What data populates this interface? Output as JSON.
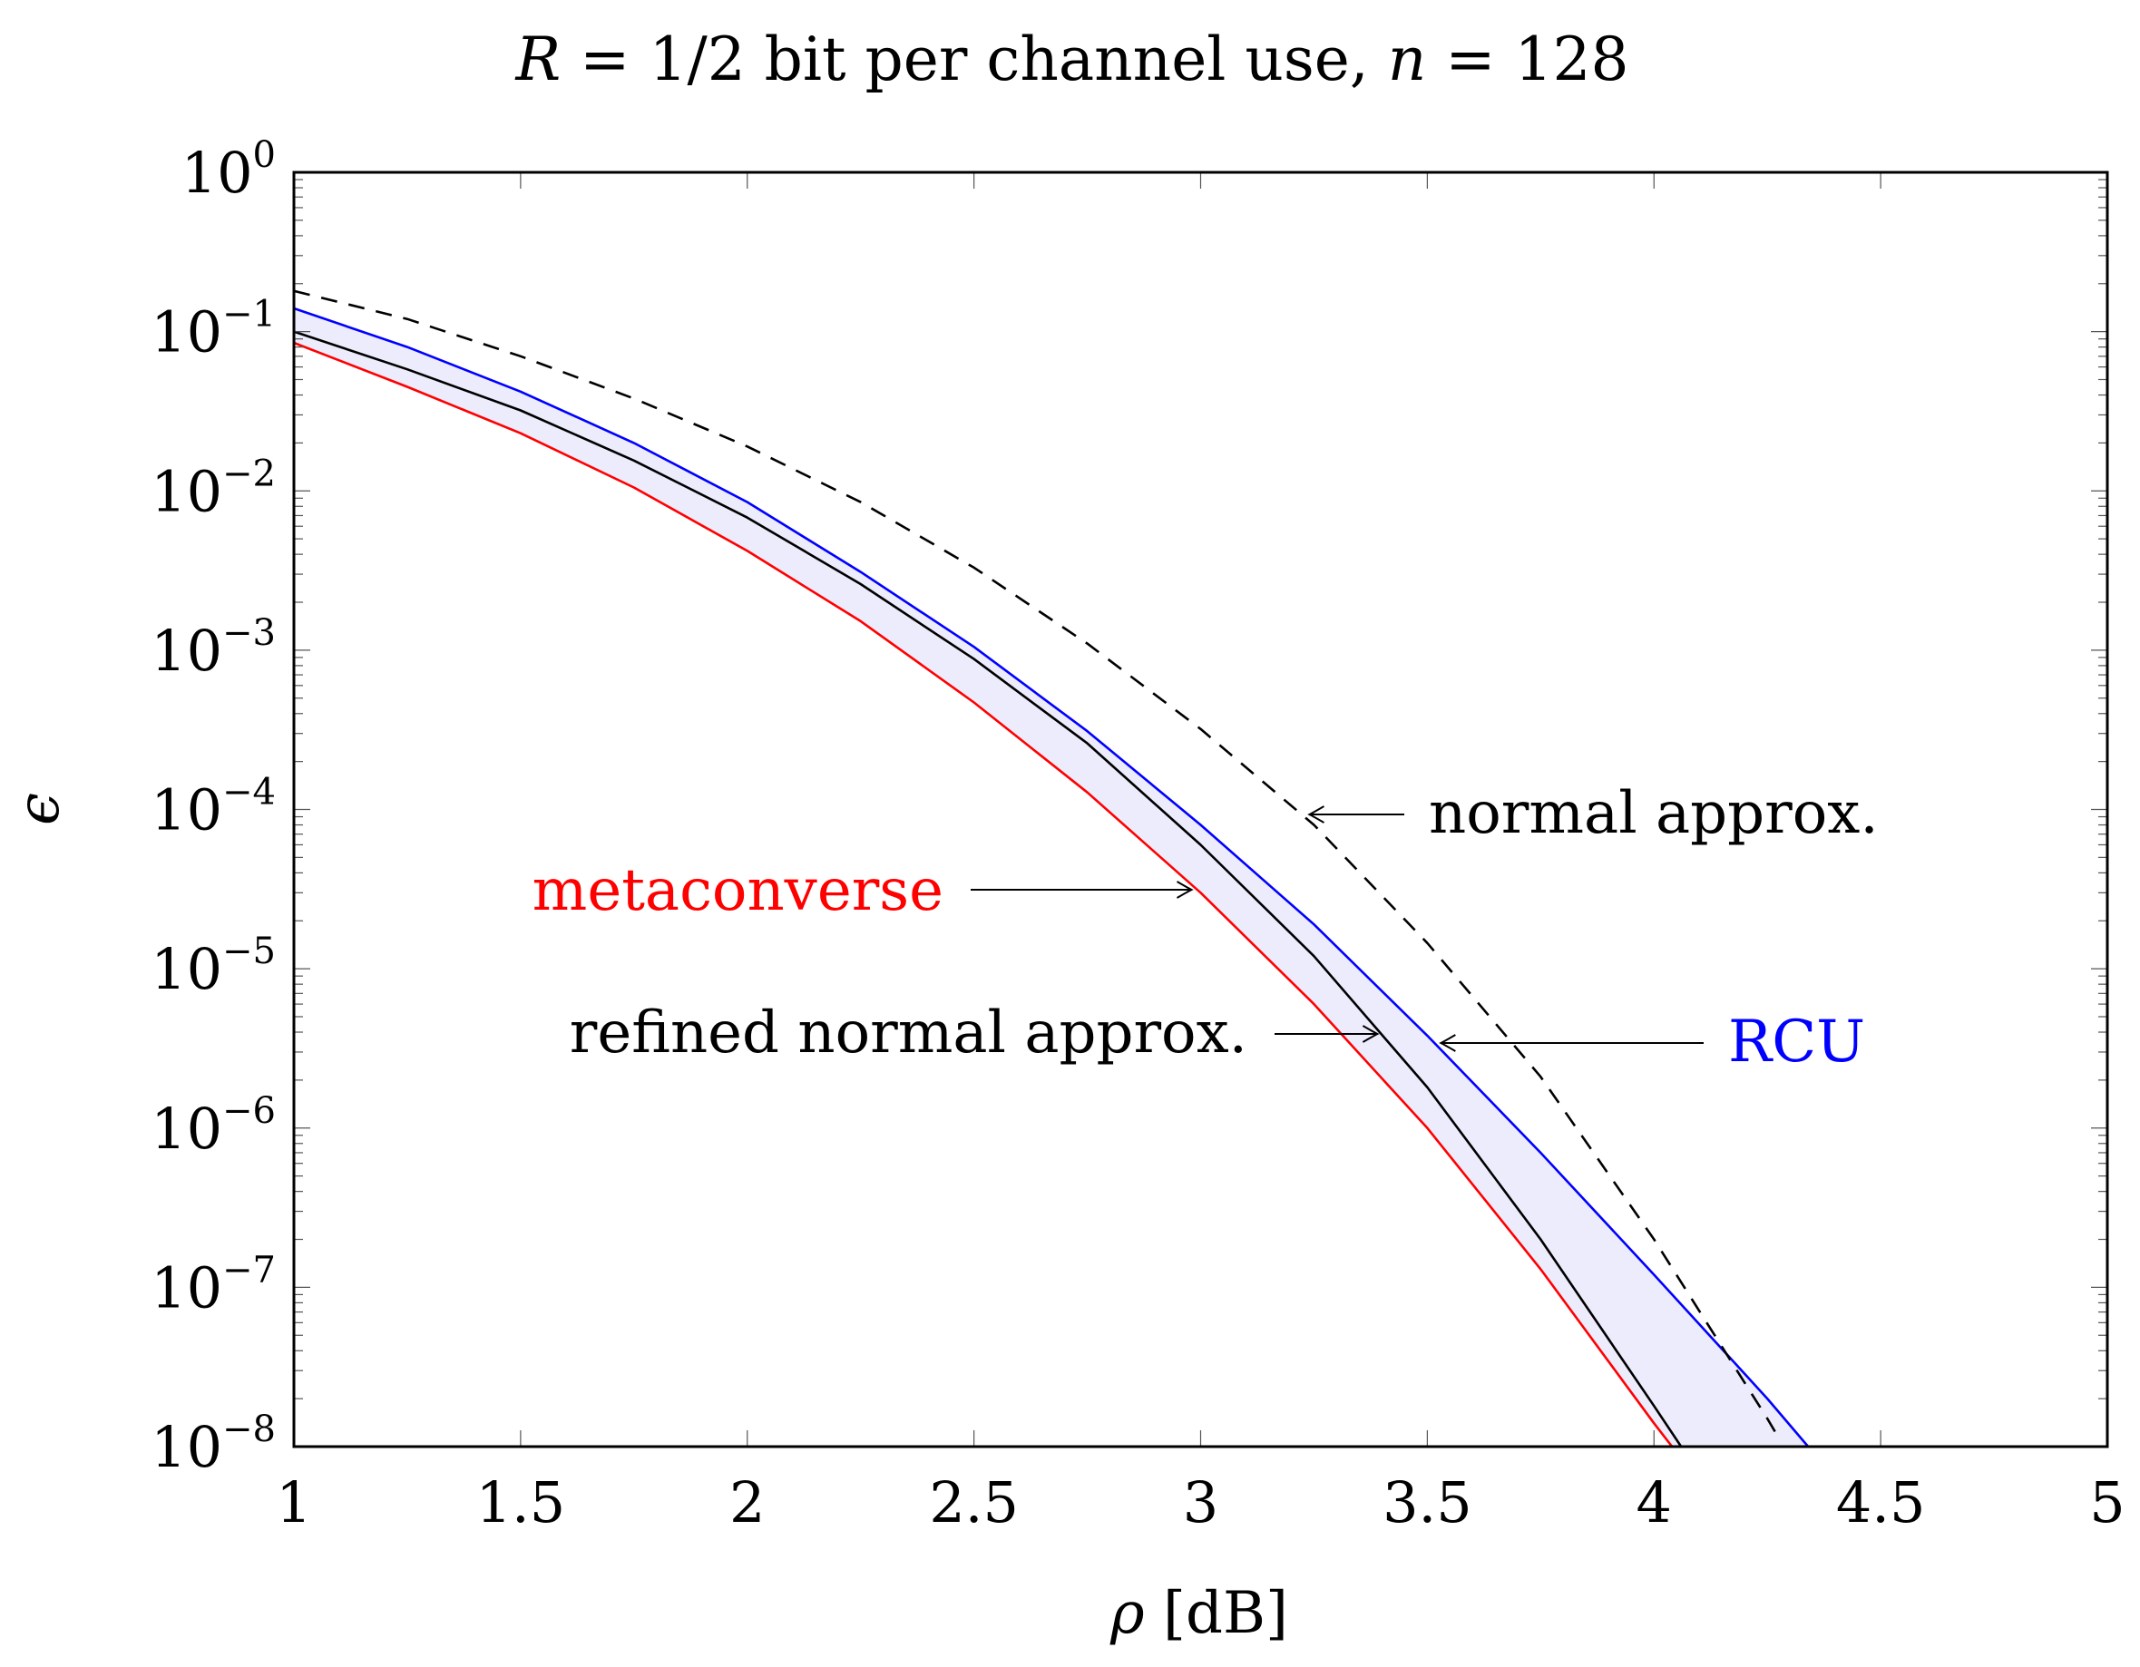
{
  "chart_data": {
    "type": "line",
    "title": {
      "prefix": "R",
      "middle": " = 1/2 bit per channel use, ",
      "var": "n",
      "suffix": " = 128"
    },
    "xlabel": {
      "symbol": "ρ",
      "unit": "[dB]"
    },
    "ylabel": "ϵ",
    "xlim": [
      1,
      5
    ],
    "ylim": [
      1e-08,
      1
    ],
    "yscale": "log",
    "grid": false,
    "x_ticks": [
      "1",
      "1.5",
      "2",
      "2.5",
      "3",
      "3.5",
      "4",
      "4.5",
      "5"
    ],
    "y_ticks": [
      {
        "base": "10",
        "exp": "0"
      },
      {
        "base": "10",
        "exp": "−1"
      },
      {
        "base": "10",
        "exp": "−2"
      },
      {
        "base": "10",
        "exp": "−3"
      },
      {
        "base": "10",
        "exp": "−4"
      },
      {
        "base": "10",
        "exp": "−5"
      },
      {
        "base": "10",
        "exp": "−6"
      },
      {
        "base": "10",
        "exp": "−7"
      },
      {
        "base": "10",
        "exp": "−8"
      }
    ],
    "series": [
      {
        "name": "RCU",
        "color": "#0000ff",
        "dash": "solid",
        "x": [
          1,
          1.25,
          1.5,
          1.75,
          2,
          2.25,
          2.5,
          2.75,
          3,
          3.25,
          3.5,
          3.75,
          4,
          4.25,
          4.34
        ],
        "y": [
          0.14,
          0.08,
          0.042,
          0.02,
          0.0085,
          0.0031,
          0.00105,
          0.00031,
          8e-05,
          1.9e-05,
          3.8e-06,
          7e-07,
          1.2e-07,
          2e-08,
          1e-08
        ]
      },
      {
        "name": "metaconverse",
        "color": "#ff0000",
        "dash": "solid",
        "x": [
          1,
          1.25,
          1.5,
          1.75,
          2,
          2.25,
          2.5,
          2.75,
          3,
          3.25,
          3.5,
          3.75,
          4,
          4.04
        ],
        "y": [
          0.085,
          0.045,
          0.023,
          0.0105,
          0.0042,
          0.00152,
          0.00047,
          0.000128,
          3e-05,
          6e-06,
          1e-06,
          1.3e-07,
          1.4e-08,
          1e-08
        ]
      },
      {
        "name": "refined normal approx.",
        "color": "#000000",
        "dash": "solid",
        "x": [
          1,
          1.25,
          1.5,
          1.75,
          2,
          2.25,
          2.5,
          2.75,
          3,
          3.25,
          3.5,
          3.75,
          4,
          4.06
        ],
        "y": [
          0.1,
          0.058,
          0.032,
          0.0155,
          0.0068,
          0.0026,
          0.00088,
          0.00026,
          6e-05,
          1.2e-05,
          1.8e-06,
          2e-07,
          1.8e-08,
          1e-08
        ]
      },
      {
        "name": "normal approx.",
        "color": "#000000",
        "dash": "dashed",
        "x": [
          1,
          1.25,
          1.5,
          1.75,
          2,
          2.25,
          2.5,
          2.75,
          3,
          3.25,
          3.5,
          3.75,
          4,
          4.25,
          4.27
        ],
        "y": [
          0.18,
          0.12,
          0.07,
          0.038,
          0.019,
          0.0085,
          0.0033,
          0.0011,
          0.00032,
          8e-05,
          1.45e-05,
          2.1e-06,
          2e-07,
          1.5e-08,
          1.2e-08
        ]
      }
    ],
    "fill_between": {
      "upper": "RCU",
      "lower": "metaconverse",
      "color": "#ececfc"
    },
    "annotations": [
      {
        "text": "normal approx.",
        "color": "#000000",
        "arrow_to": [
          3.24,
          9e-05
        ]
      },
      {
        "text": "metaconverse",
        "color": "#ff0000",
        "arrow_to": [
          2.98,
          3e-05
        ]
      },
      {
        "text": "refined normal approx.",
        "color": "#000000",
        "arrow_to": [
          3.39,
          3.8e-06
        ]
      },
      {
        "text": "RCU",
        "color": "#0000ff",
        "arrow_to": [
          3.53,
          3.4e-06
        ]
      }
    ]
  }
}
